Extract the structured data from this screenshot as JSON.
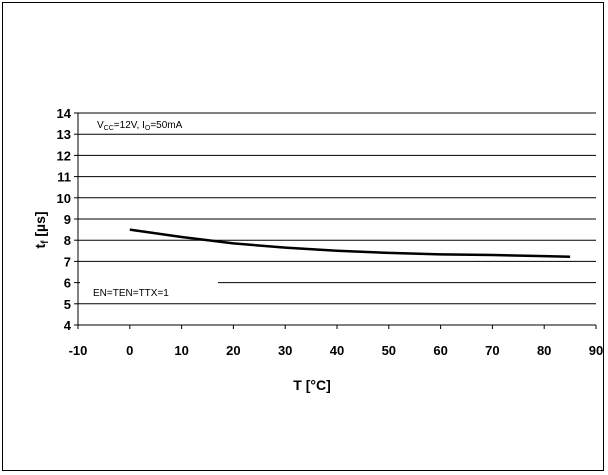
{
  "chart_data": {
    "type": "line",
    "title": "",
    "xlabel": "T [°C]",
    "ylabel": {
      "main": "t",
      "sub": "f",
      "suffix": " [µs]"
    },
    "xlim": [
      -10,
      90
    ],
    "ylim": [
      4,
      14
    ],
    "xticks": [
      "-10",
      "0",
      "10",
      "20",
      "30",
      "40",
      "50",
      "60",
      "70",
      "80",
      "90"
    ],
    "yticks": [
      "4",
      "5",
      "6",
      "7",
      "8",
      "9",
      "10",
      "11",
      "12",
      "13",
      "14"
    ],
    "grid": "horizontal",
    "annotations": {
      "conditions": {
        "v": "V",
        "v_sub": "CC",
        "v_val": "=12V, I",
        "i_sub": "O",
        "i_val": "=50mA"
      },
      "mode": "EN=TEN=TTX=1"
    },
    "series": [
      {
        "color": "#000000",
        "x": [
          0,
          10,
          20,
          30,
          40,
          50,
          60,
          70,
          80,
          85
        ],
        "y": [
          8.5,
          8.15,
          7.85,
          7.65,
          7.5,
          7.4,
          7.33,
          7.3,
          7.25,
          7.22
        ]
      }
    ]
  }
}
